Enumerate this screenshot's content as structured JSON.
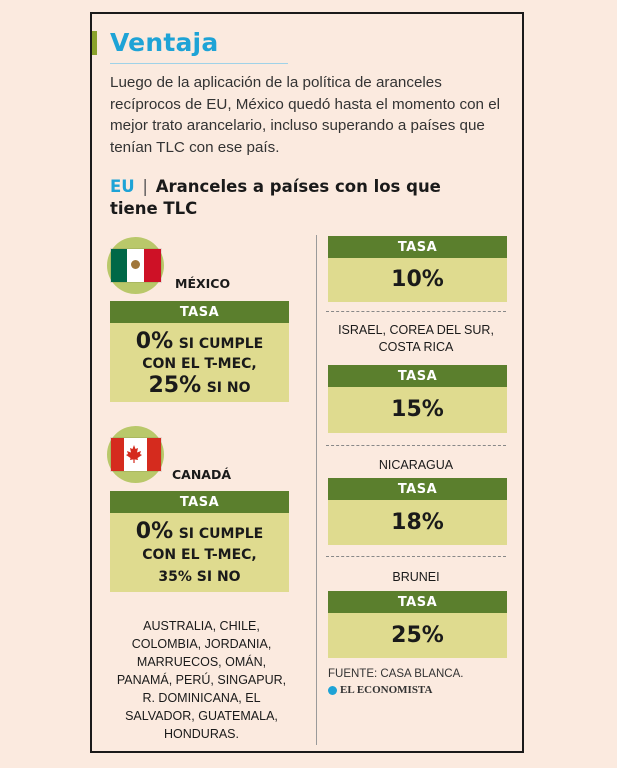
{
  "title": "Ventaja",
  "intro": "Luego de la aplicación de la política de aranceles recíprocos de EU, México quedó hasta el momento con el mejor trato arancelario, incluso superando a países que tenían TLC con ese país.",
  "subtitle": {
    "tag": "EU",
    "separator": "|",
    "text": "Aranceles a países con los que tiene TLC"
  },
  "left": {
    "mexico": {
      "label": "MÉXICO",
      "head": "TASA",
      "line1_pct": "0%",
      "line1_rest": "SI CUMPLE",
      "line2": "CON EL T-MEC,",
      "line3_pct": "25%",
      "line3_rest": "SI NO"
    },
    "canada": {
      "label": "CANADÁ",
      "head": "TASA",
      "line1_pct": "0%",
      "line1_rest": "SI CUMPLE",
      "line2": "CON EL T-MEC,",
      "line3": "35% SI NO"
    },
    "countries": "AUSTRALIA, CHILE, COLOMBIA, JORDANIA, MARRUECOS, OMÁN, PANAMÁ, PERÚ, SINGAPUR, R. DOMINICANA, EL SALVADOR, GUATEMALA, HONDURAS."
  },
  "right": {
    "rate1": {
      "head": "TASA",
      "value": "10%"
    },
    "group2_label": "ISRAEL, COREA DEL SUR, COSTA RICA",
    "rate2": {
      "head": "TASA",
      "value": "15%"
    },
    "group3_label": "NICARAGUA",
    "rate3": {
      "head": "TASA",
      "value": "18%"
    },
    "group4_label": "BRUNEI",
    "rate4": {
      "head": "TASA",
      "value": "25%"
    }
  },
  "source": "FUENTE: CASA BLANCA.",
  "logo": "EL ECONOMISTA",
  "colors": {
    "background": "#fbeadf",
    "title": "#1ea3d6",
    "accent": "#8aa22b",
    "box_head": "#5b7f2d",
    "box_body": "#dfdb8f",
    "flag_circle": "#b9c86a"
  }
}
